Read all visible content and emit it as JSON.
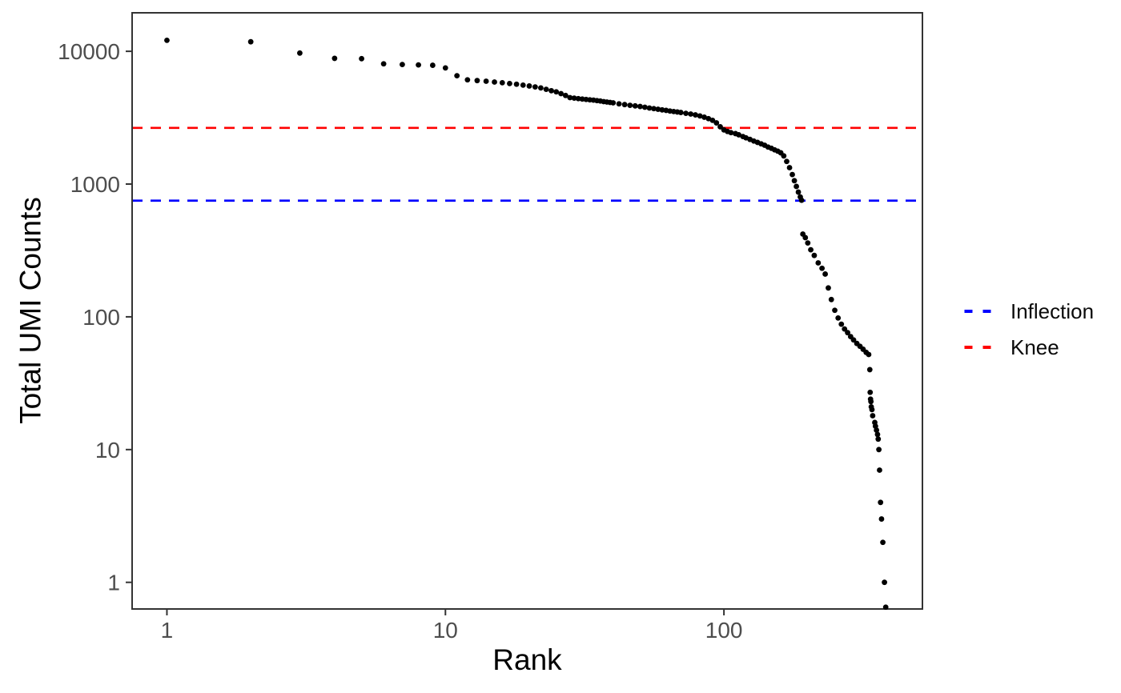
{
  "figure_title": "",
  "axis_titles": {
    "x": "Rank",
    "y": "Total UMI Counts"
  },
  "legend": {
    "items": [
      {
        "label": "Inflection",
        "color": "#0000FF"
      },
      {
        "label": "Knee",
        "color": "#FF0000"
      }
    ]
  },
  "chart_data": {
    "type": "scatter",
    "title": "",
    "xlabel": "Rank",
    "ylabel": "Total UMI Counts",
    "x_scale": "log10",
    "y_scale": "log10",
    "xlim": [
      0.75,
      516
    ],
    "ylim": [
      0.63,
      19500
    ],
    "x_ticks": [
      1,
      10,
      100
    ],
    "y_ticks": [
      1,
      10,
      100,
      1000,
      10000
    ],
    "grid": "off",
    "legend_position": "right",
    "point_color": "#000000",
    "tick_label_color": "#4D4D4D",
    "axis_color": "#333333",
    "hlines": [
      {
        "label": "Inflection",
        "value": 750,
        "color": "#0000FF",
        "style": "dashed"
      },
      {
        "label": "Knee",
        "value": 2650,
        "color": "#FF0000",
        "style": "dashed"
      }
    ],
    "points": [
      [
        1,
        12100
      ],
      [
        2,
        11800
      ],
      [
        3,
        9700
      ],
      [
        4,
        8850
      ],
      [
        5,
        8800
      ],
      [
        6,
        8050
      ],
      [
        7,
        7950
      ],
      [
        8,
        7900
      ],
      [
        9,
        7850
      ],
      [
        10,
        7500
      ],
      [
        11,
        6550
      ],
      [
        12,
        6100
      ],
      [
        13,
        6020
      ],
      [
        14,
        5950
      ],
      [
        15,
        5870
      ],
      [
        16,
        5800
      ],
      [
        17,
        5720
      ],
      [
        18,
        5650
      ],
      [
        19,
        5560
      ],
      [
        20,
        5480
      ],
      [
        21,
        5390
      ],
      [
        22,
        5300
      ],
      [
        23,
        5170
      ],
      [
        24,
        5050
      ],
      [
        25,
        4950
      ],
      [
        26,
        4800
      ],
      [
        27,
        4650
      ],
      [
        28,
        4480
      ],
      [
        29,
        4440
      ],
      [
        30,
        4400
      ],
      [
        31,
        4370
      ],
      [
        32,
        4340
      ],
      [
        33,
        4310
      ],
      [
        34,
        4290
      ],
      [
        35,
        4250
      ],
      [
        36,
        4220
      ],
      [
        37,
        4180
      ],
      [
        38,
        4150
      ],
      [
        39,
        4120
      ],
      [
        40,
        4090
      ],
      [
        42,
        4020
      ],
      [
        44,
        3970
      ],
      [
        46,
        3920
      ],
      [
        48,
        3880
      ],
      [
        50,
        3840
      ],
      [
        52,
        3790
      ],
      [
        54,
        3740
      ],
      [
        56,
        3700
      ],
      [
        58,
        3660
      ],
      [
        60,
        3620
      ],
      [
        62,
        3590
      ],
      [
        64,
        3550
      ],
      [
        66,
        3520
      ],
      [
        68,
        3490
      ],
      [
        70,
        3460
      ],
      [
        73,
        3410
      ],
      [
        76,
        3370
      ],
      [
        79,
        3320
      ],
      [
        82,
        3260
      ],
      [
        85,
        3190
      ],
      [
        88,
        3110
      ],
      [
        91,
        3020
      ],
      [
        94,
        2890
      ],
      [
        97,
        2700
      ],
      [
        100,
        2560
      ],
      [
        103,
        2490
      ],
      [
        106,
        2440
      ],
      [
        110,
        2400
      ],
      [
        113,
        2350
      ],
      [
        117,
        2280
      ],
      [
        120,
        2230
      ],
      [
        124,
        2170
      ],
      [
        128,
        2110
      ],
      [
        132,
        2060
      ],
      [
        136,
        2010
      ],
      [
        140,
        1960
      ],
      [
        144,
        1900
      ],
      [
        148,
        1860
      ],
      [
        152,
        1810
      ],
      [
        156,
        1770
      ],
      [
        160,
        1720
      ],
      [
        164,
        1630
      ],
      [
        168,
        1480
      ],
      [
        172,
        1330
      ],
      [
        176,
        1180
      ],
      [
        179,
        1060
      ],
      [
        182,
        960
      ],
      [
        185,
        870
      ],
      [
        188,
        800
      ],
      [
        190,
        755
      ],
      [
        192,
        420
      ],
      [
        196,
        395
      ],
      [
        200,
        360
      ],
      [
        205,
        320
      ],
      [
        211,
        290
      ],
      [
        218,
        255
      ],
      [
        225,
        232
      ],
      [
        231,
        210
      ],
      [
        237,
        165
      ],
      [
        243,
        135
      ],
      [
        250,
        112
      ],
      [
        257,
        98
      ],
      [
        264,
        88
      ],
      [
        271,
        81
      ],
      [
        278,
        76
      ],
      [
        285,
        71
      ],
      [
        292,
        67
      ],
      [
        300,
        63
      ],
      [
        308,
        60
      ],
      [
        316,
        57
      ],
      [
        324,
        54
      ],
      [
        331,
        52
      ],
      [
        334,
        40
      ],
      [
        335,
        27
      ],
      [
        336,
        24
      ],
      [
        337,
        23
      ],
      [
        338,
        21
      ],
      [
        340,
        20
      ],
      [
        342,
        18
      ],
      [
        348,
        16
      ],
      [
        350,
        15
      ],
      [
        353,
        14
      ],
      [
        356,
        13
      ],
      [
        358,
        12
      ],
      [
        360,
        10
      ],
      [
        362,
        7
      ],
      [
        365,
        4
      ],
      [
        368,
        3
      ],
      [
        372,
        2
      ],
      [
        377,
        1
      ],
      [
        381,
        0.65
      ]
    ]
  }
}
